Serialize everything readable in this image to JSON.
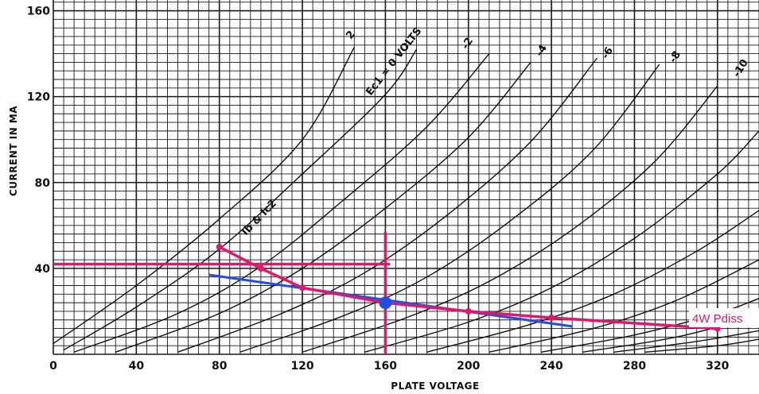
{
  "chart_data": {
    "type": "line",
    "xlabel": "PLATE VOLTAGE",
    "ylabel": "CURRENT IN MA",
    "xlim": [
      0,
      340
    ],
    "ylim": [
      0,
      165
    ],
    "x_ticks": [
      0,
      40,
      80,
      120,
      160,
      200,
      240,
      280,
      320
    ],
    "y_ticks": [
      40,
      80,
      120,
      160
    ],
    "grid": true,
    "curve_family_label": "Ib & Ic2",
    "series": [
      {
        "name": "2",
        "points": [
          [
            0,
            5
          ],
          [
            40,
            32
          ],
          [
            80,
            63
          ],
          [
            120,
            100
          ],
          [
            145,
            143
          ]
        ]
      },
      {
        "name": "Ec1 = 0 VOLTS",
        "points": [
          [
            5,
            2
          ],
          [
            40,
            22
          ],
          [
            80,
            49
          ],
          [
            120,
            84
          ],
          [
            160,
            121
          ],
          [
            175,
            142
          ]
        ]
      },
      {
        "name": "-2",
        "points": [
          [
            10,
            1
          ],
          [
            60,
            19
          ],
          [
            100,
            41
          ],
          [
            140,
            72
          ],
          [
            180,
            106
          ],
          [
            210,
            140
          ]
        ]
      },
      {
        "name": "-4",
        "points": [
          [
            30,
            1
          ],
          [
            80,
            19
          ],
          [
            120,
            40
          ],
          [
            160,
            68
          ],
          [
            200,
            101
          ],
          [
            230,
            136
          ]
        ]
      },
      {
        "name": "-6",
        "points": [
          [
            60,
            1
          ],
          [
            110,
            19
          ],
          [
            150,
            38
          ],
          [
            190,
            65
          ],
          [
            230,
            99
          ],
          [
            262,
            138
          ]
        ]
      },
      {
        "name": "-8",
        "points": [
          [
            90,
            1
          ],
          [
            140,
            18
          ],
          [
            180,
            36
          ],
          [
            220,
            62
          ],
          [
            260,
            95
          ],
          [
            292,
            135
          ]
        ]
      },
      {
        "name": "-10",
        "points": [
          [
            120,
            1
          ],
          [
            170,
            17
          ],
          [
            210,
            34
          ],
          [
            250,
            58
          ],
          [
            290,
            90
          ],
          [
            320,
            125
          ]
        ]
      },
      {
        "name": "",
        "points": [
          [
            150,
            1
          ],
          [
            200,
            15
          ],
          [
            240,
            31
          ],
          [
            280,
            54
          ],
          [
            320,
            84
          ],
          [
            340,
            104
          ]
        ]
      },
      {
        "name": "",
        "points": [
          [
            180,
            1
          ],
          [
            230,
            14
          ],
          [
            270,
            28
          ],
          [
            310,
            48
          ],
          [
            340,
            67
          ]
        ]
      },
      {
        "name": "",
        "points": [
          [
            210,
            1
          ],
          [
            260,
            12
          ],
          [
            300,
            25
          ],
          [
            340,
            44
          ]
        ]
      },
      {
        "name": "",
        "points": [
          [
            235,
            1
          ],
          [
            280,
            9
          ],
          [
            320,
            19
          ],
          [
            340,
            26
          ]
        ]
      },
      {
        "name": "",
        "points": [
          [
            255,
            1
          ],
          [
            300,
            8
          ],
          [
            340,
            18
          ]
        ]
      },
      {
        "name": "",
        "points": [
          [
            270,
            1
          ],
          [
            310,
            6
          ],
          [
            340,
            11
          ]
        ]
      },
      {
        "name": "",
        "points": [
          [
            285,
            1
          ],
          [
            320,
            4
          ],
          [
            340,
            7
          ]
        ]
      }
    ],
    "dissipation_curve": {
      "label": "4W Pdiss",
      "color": "#e6156a",
      "points": [
        [
          80,
          50
        ],
        [
          100,
          40
        ],
        [
          120,
          31
        ],
        [
          160,
          24
        ],
        [
          200,
          20
        ],
        [
          240,
          17
        ],
        [
          320,
          12
        ]
      ]
    },
    "load_line": {
      "color": "#1f4fe8",
      "points": [
        [
          75,
          37
        ],
        [
          250,
          13
        ]
      ]
    },
    "crosshair": {
      "color": "#e6156a",
      "horizontal_y": 42,
      "horizontal_x_range": [
        0,
        160
      ],
      "vertical_x": 160,
      "vertical_y_range": [
        0,
        57
      ]
    },
    "operating_point": {
      "x": 160,
      "y": 24,
      "color": "#1f4fe8"
    }
  }
}
